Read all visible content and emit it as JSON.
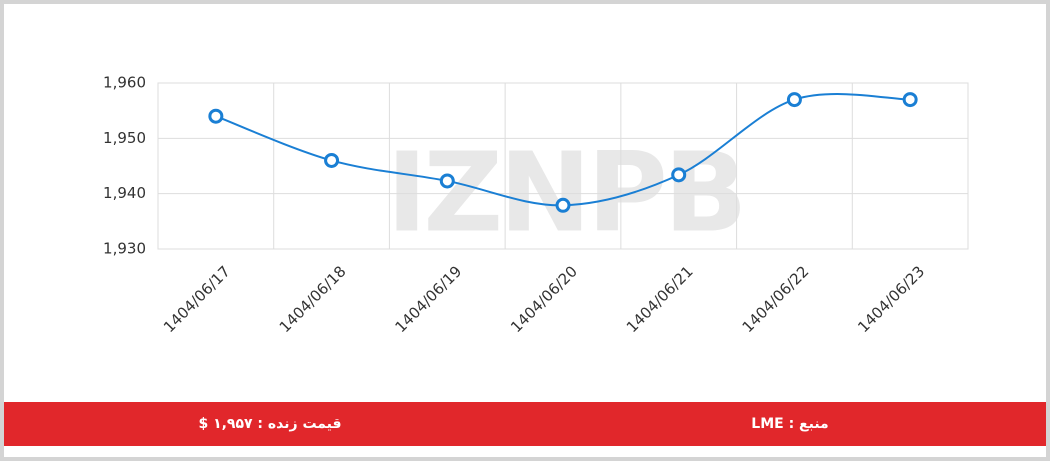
{
  "chart_data": {
    "type": "line",
    "categories": [
      "1404/06/17",
      "1404/06/18",
      "1404/06/19",
      "1404/06/20",
      "1404/06/21",
      "1404/06/22",
      "1404/06/23"
    ],
    "series": [
      {
        "name": "LME",
        "color": "#1a7fd4",
        "values": [
          1954,
          1946,
          1942.3,
          1937.9,
          1943.4,
          1957,
          1957
        ]
      }
    ],
    "ylim": [
      1930,
      1960
    ],
    "yticks": [
      {
        "value": 1930,
        "label": "1,930"
      },
      {
        "value": 1940,
        "label": "1,940"
      },
      {
        "value": 1950,
        "label": "1,950"
      },
      {
        "value": 1960,
        "label": "1,960"
      }
    ],
    "grid": true,
    "watermark": "IZNPB"
  },
  "footer": {
    "price": "قیمت زنده : ۱,۹۵۷ $",
    "source": "منبع : LME"
  }
}
